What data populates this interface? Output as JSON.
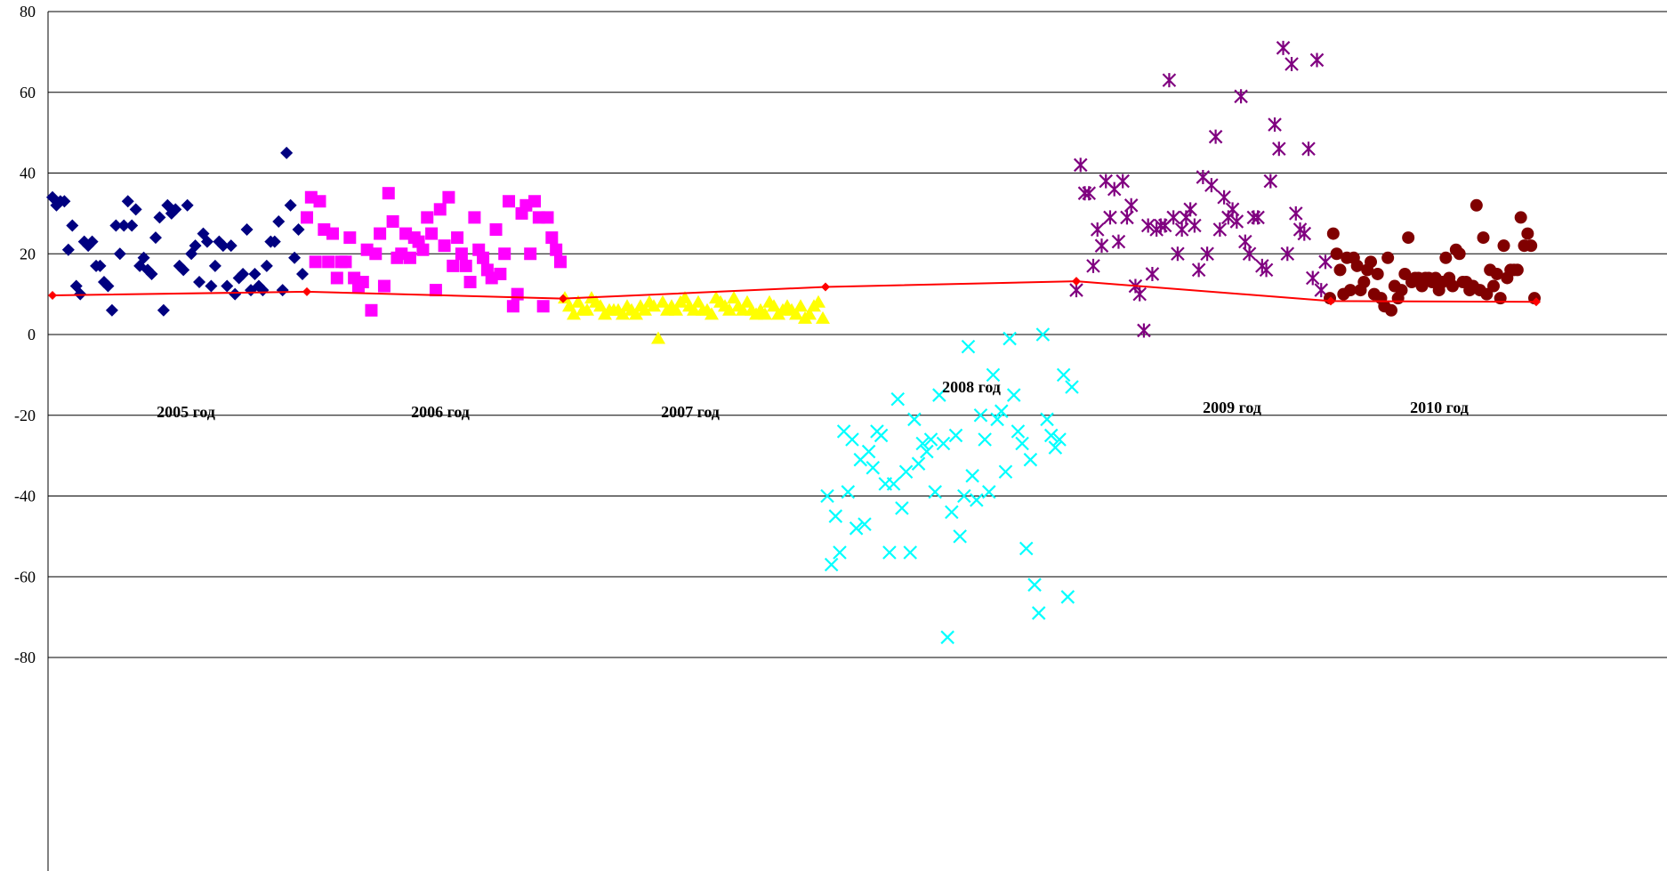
{
  "chart_data": {
    "type": "scatter",
    "title": "",
    "xlabel": "",
    "ylabel": "",
    "ylim": [
      -97,
      80
    ],
    "y_ticks": [
      "80",
      "60",
      "40",
      "20",
      "0",
      "-20",
      "-40",
      "-60",
      "-80"
    ],
    "grid": true,
    "legend": "none",
    "year_labels": [
      "2005 год",
      "2006 год",
      "2007 год",
      "2008 год",
      "2009 год",
      "2010 год"
    ],
    "series": [
      {
        "marker": "diamond",
        "color": "#000080",
        "values": [
          34,
          32,
          33,
          33,
          21,
          27,
          12,
          10,
          23,
          22,
          23,
          17,
          17,
          13,
          12,
          6,
          27,
          20,
          27,
          33,
          27,
          31,
          17,
          19,
          16,
          15,
          24,
          29,
          6,
          32,
          30,
          31,
          17,
          16,
          32,
          20,
          22,
          13,
          25,
          23,
          12,
          17,
          23,
          22,
          12,
          22,
          10,
          14,
          15,
          26,
          11,
          15,
          12,
          11,
          17,
          23,
          23,
          28,
          11,
          45,
          32,
          19,
          26,
          15
        ]
      },
      {
        "marker": "square",
        "color": "#FF00FF",
        "values": [
          29,
          34,
          18,
          33,
          26,
          18,
          25,
          14,
          18,
          18,
          24,
          14,
          12,
          13,
          21,
          6,
          20,
          25,
          12,
          35,
          28,
          19,
          20,
          25,
          19,
          24,
          23,
          21,
          29,
          25,
          11,
          31,
          22,
          34,
          17,
          24,
          20,
          17,
          13,
          29,
          21,
          19,
          16,
          14,
          26,
          15,
          20,
          33,
          7,
          10,
          30,
          32,
          20,
          33,
          29,
          7,
          29,
          24,
          21,
          18
        ]
      },
      {
        "marker": "triangle",
        "color": "#FFFF00",
        "values": [
          9,
          7,
          5,
          8,
          6,
          6,
          9,
          8,
          7,
          5,
          6,
          6,
          6,
          5,
          7,
          6,
          5,
          7,
          6,
          8,
          7,
          -1,
          8,
          6,
          7,
          6,
          8,
          9,
          7,
          6,
          8,
          6,
          6,
          5,
          9,
          8,
          7,
          6,
          9,
          7,
          6,
          8,
          6,
          5,
          6,
          5,
          8,
          7,
          5,
          6,
          7,
          6,
          5,
          7,
          4,
          5,
          7,
          8,
          4
        ]
      },
      {
        "marker": "x",
        "color": "#00FFFF",
        "values": [
          -40,
          -57,
          -45,
          -54,
          -24,
          -39,
          -26,
          -48,
          -31,
          -47,
          -29,
          -33,
          -24,
          -25,
          -37,
          -54,
          -37,
          -16,
          -43,
          -34,
          -54,
          -21,
          -32,
          -27,
          -29,
          -26,
          -39,
          -15,
          -27,
          -75,
          -44,
          -25,
          -50,
          -40,
          -3,
          -35,
          -41,
          -20,
          -26,
          -39,
          -10,
          -21,
          -19,
          -34,
          -1,
          -15,
          -24,
          -27,
          -53,
          -31,
          -62,
          -69,
          0,
          -21,
          -25,
          -28,
          -26,
          -10,
          -65,
          -13
        ]
      },
      {
        "marker": "asterisk",
        "color": "#800080",
        "values": [
          11,
          42,
          35,
          35,
          17,
          26,
          22,
          38,
          29,
          36,
          23,
          38,
          29,
          32,
          12,
          10,
          1,
          27,
          15,
          26,
          27,
          27,
          63,
          29,
          20,
          26,
          29,
          31,
          27,
          16,
          39,
          20,
          37,
          49,
          26,
          34,
          29,
          31,
          28,
          59,
          23,
          20,
          29,
          29,
          17,
          16,
          38,
          52,
          46,
          71,
          20,
          67,
          30,
          26,
          25,
          46,
          14,
          68,
          11,
          18
        ]
      },
      {
        "marker": "circle",
        "color": "#800000",
        "values": [
          9,
          25,
          20,
          16,
          10,
          19,
          11,
          19,
          17,
          11,
          13,
          16,
          18,
          10,
          15,
          9,
          7,
          19,
          6,
          12,
          9,
          11,
          15,
          24,
          13,
          14,
          14,
          12,
          14,
          14,
          13,
          14,
          11,
          13,
          19,
          14,
          12,
          21,
          20,
          13,
          13,
          11,
          12,
          32,
          11,
          24,
          10,
          16,
          12,
          15,
          9,
          22,
          14,
          16,
          16,
          16,
          29,
          22,
          25,
          22,
          9
        ]
      },
      {
        "marker": "line",
        "color": "#FF0000",
        "name": "",
        "x": [
          0,
          1,
          2,
          3,
          4,
          5,
          6
        ],
        "values": [
          9.7,
          10.6,
          8.9,
          11.8,
          13.2,
          8.3,
          8.1
        ]
      }
    ]
  }
}
